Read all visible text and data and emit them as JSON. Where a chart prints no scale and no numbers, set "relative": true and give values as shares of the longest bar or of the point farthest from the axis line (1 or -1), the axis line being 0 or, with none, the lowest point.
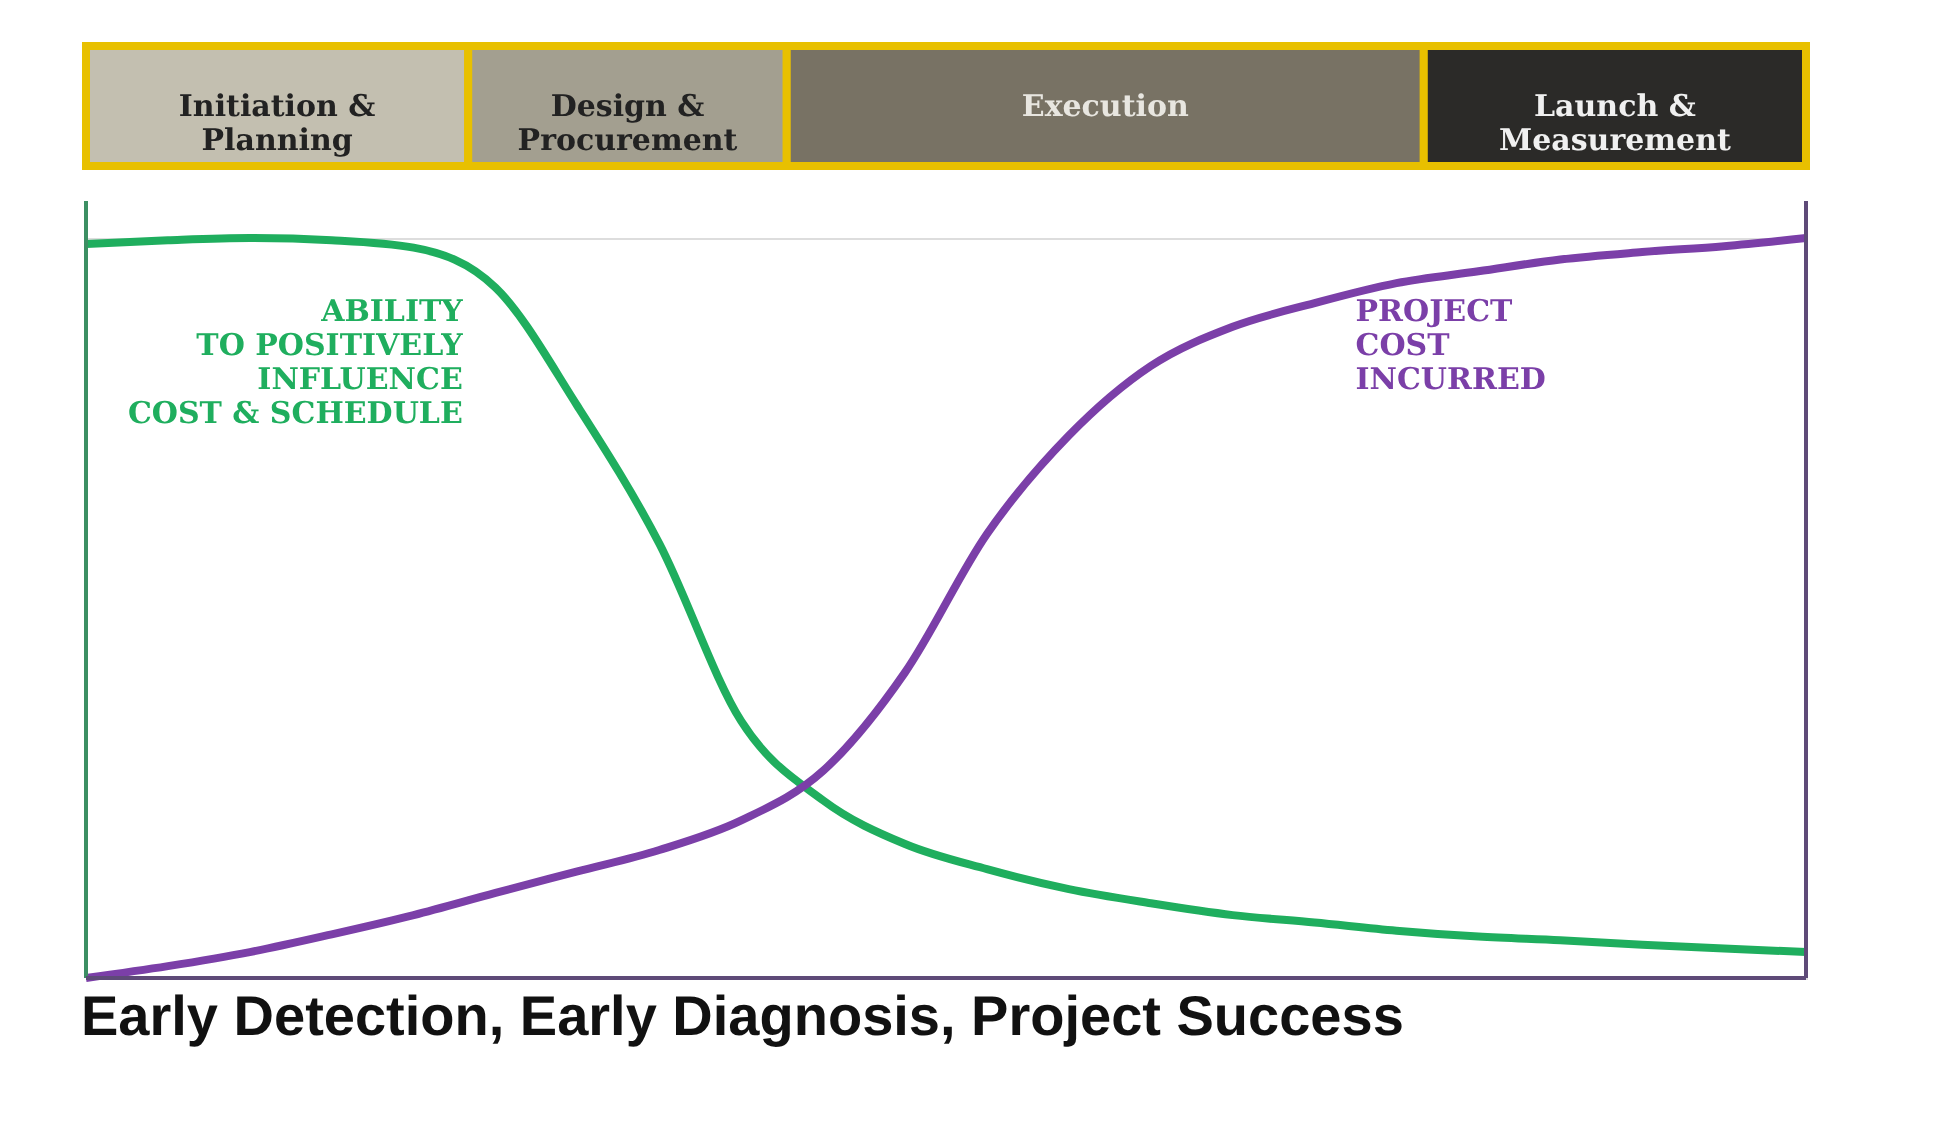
{
  "chart_data": {
    "type": "line",
    "relative": true,
    "title": "Early Detection, Early Diagnosis, Project Success",
    "annotations": [
      "Initiation &\nPlanning",
      "Design &\nProcurement",
      "Execution",
      "Launch &\nMeasurement"
    ],
    "categories": [
      null,
      null,
      null,
      null,
      null,
      null,
      null,
      null,
      null,
      null,
      null,
      null,
      null,
      null,
      null,
      null,
      null,
      null,
      null,
      null,
      null,
      null
    ],
    "series": [
      {
        "name": "ABILITY\nTO POSITIVELY\nINFLUENCE\nCOST & SCHEDULE",
        "color": "#1fae5e",
        "values": [
          0.992,
          0.997,
          1.0,
          0.997,
          0.987,
          0.933,
          0.773,
          0.587,
          0.347,
          0.24,
          0.181,
          0.147,
          0.12,
          0.101,
          0.085,
          0.075,
          0.064,
          0.056,
          0.051,
          0.045,
          0.04,
          0.035
        ]
      },
      {
        "name": "PROJECT\nCOST\nINCURRED",
        "color": "#7b3fa8",
        "values": [
          0,
          0.016,
          0.035,
          0.059,
          0.085,
          0.115,
          0.144,
          0.173,
          0.213,
          0.28,
          0.413,
          0.6,
          0.733,
          0.827,
          0.88,
          0.912,
          0.939,
          0.955,
          0.971,
          0.981,
          0.989,
          1.0
        ]
      }
    ],
    "line_style": "solid"
  }
}
